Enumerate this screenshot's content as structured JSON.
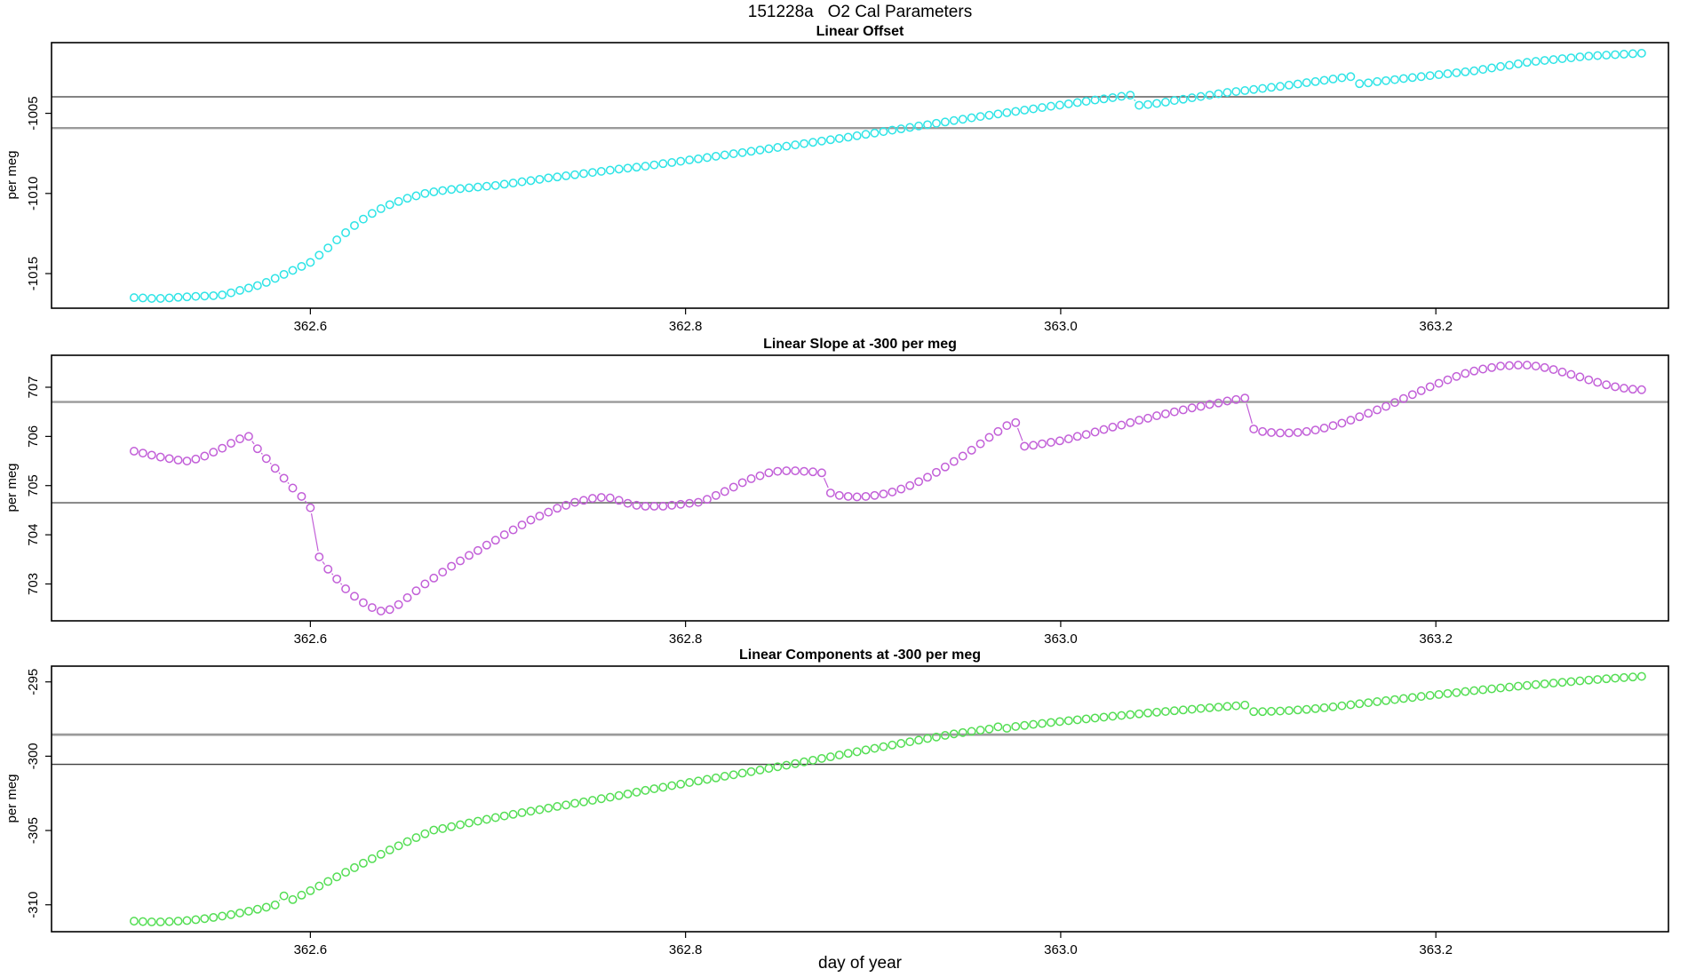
{
  "figure": {
    "title": "151228a   O2 Cal Parameters",
    "xlabel": "day of year"
  },
  "chart_data": [
    {
      "type": "scatter",
      "title": "Linear Offset",
      "ylabel": "per meg",
      "series_color": "#2EE4E6",
      "marker": "open-circle",
      "x_start": 362.506,
      "x_step": 0.0047,
      "x_ticks": [
        362.6,
        362.8,
        363.0,
        363.2
      ],
      "xlim": [
        362.462,
        363.324
      ],
      "y_ticks": [
        -1015,
        -1010,
        -1005
      ],
      "ylim": [
        -1017.16,
        -1000.59
      ],
      "ref_lines": [
        {
          "value": -1003.97,
          "color": "#5a5a5a",
          "width": 1.4
        },
        {
          "value": -1005.92,
          "color": "#9a9a9a",
          "width": 2.4
        }
      ],
      "values": [
        -1016.5,
        -1016.52,
        -1016.55,
        -1016.55,
        -1016.52,
        -1016.48,
        -1016.45,
        -1016.42,
        -1016.4,
        -1016.38,
        -1016.33,
        -1016.2,
        -1016.05,
        -1015.9,
        -1015.75,
        -1015.55,
        -1015.3,
        -1015.05,
        -1014.8,
        -1014.55,
        -1014.3,
        -1013.85,
        -1013.4,
        -1012.9,
        -1012.45,
        -1012.0,
        -1011.6,
        -1011.25,
        -1010.95,
        -1010.7,
        -1010.5,
        -1010.3,
        -1010.15,
        -1010.0,
        -1009.9,
        -1009.82,
        -1009.75,
        -1009.7,
        -1009.65,
        -1009.6,
        -1009.55,
        -1009.5,
        -1009.42,
        -1009.35,
        -1009.27,
        -1009.2,
        -1009.12,
        -1009.03,
        -1008.97,
        -1008.9,
        -1008.83,
        -1008.76,
        -1008.69,
        -1008.62,
        -1008.55,
        -1008.48,
        -1008.42,
        -1008.36,
        -1008.3,
        -1008.22,
        -1008.14,
        -1008.07,
        -1007.99,
        -1007.91,
        -1007.84,
        -1007.76,
        -1007.68,
        -1007.6,
        -1007.52,
        -1007.45,
        -1007.37,
        -1007.29,
        -1007.21,
        -1007.13,
        -1007.05,
        -1006.97,
        -1006.89,
        -1006.81,
        -1006.73,
        -1006.65,
        -1006.57,
        -1006.49,
        -1006.4,
        -1006.31,
        -1006.23,
        -1006.14,
        -1006.05,
        -1005.97,
        -1005.88,
        -1005.79,
        -1005.71,
        -1005.62,
        -1005.54,
        -1005.45,
        -1005.37,
        -1005.28,
        -1005.2,
        -1005.12,
        -1005.04,
        -1004.96,
        -1004.88,
        -1004.8,
        -1004.72,
        -1004.64,
        -1004.56,
        -1004.49,
        -1004.41,
        -1004.33,
        -1004.25,
        -1004.17,
        -1004.1,
        -1004.02,
        -1003.94,
        -1003.87,
        -1004.5,
        -1004.45,
        -1004.38,
        -1004.3,
        -1004.2,
        -1004.12,
        -1004.03,
        -1003.95,
        -1003.87,
        -1003.78,
        -1003.7,
        -1003.64,
        -1003.58,
        -1003.51,
        -1003.45,
        -1003.38,
        -1003.32,
        -1003.24,
        -1003.17,
        -1003.09,
        -1003.02,
        -1002.94,
        -1002.86,
        -1002.78,
        -1002.71,
        -1003.15,
        -1003.1,
        -1003.02,
        -1002.96,
        -1002.9,
        -1002.83,
        -1002.77,
        -1002.71,
        -1002.65,
        -1002.59,
        -1002.53,
        -1002.47,
        -1002.41,
        -1002.35,
        -1002.26,
        -1002.17,
        -1002.08,
        -1002.0,
        -1001.91,
        -1001.82,
        -1001.76,
        -1001.7,
        -1001.65,
        -1001.59,
        -1001.54,
        -1001.48,
        -1001.43,
        -1001.4,
        -1001.37,
        -1001.34,
        -1001.31,
        -1001.28,
        -1001.25
      ]
    },
    {
      "type": "scatter",
      "title": "Linear Slope at -300 per meg",
      "ylabel": "per meg",
      "series_color": "#C25FD8",
      "marker": "open-circle",
      "x_start": 362.506,
      "x_step": 0.0047,
      "x_ticks": [
        362.6,
        362.8,
        363.0,
        363.2
      ],
      "xlim": [
        362.462,
        363.324
      ],
      "y_ticks": [
        703,
        704,
        705,
        706,
        707
      ],
      "ylim": [
        702.25,
        707.65
      ],
      "ref_lines": [
        {
          "value": 706.7,
          "color": "#9a9a9a",
          "width": 2.4
        },
        {
          "value": 704.65,
          "color": "#6f6f6f",
          "width": 1.6
        }
      ],
      "values": [
        705.7,
        705.66,
        705.62,
        705.58,
        705.55,
        705.52,
        705.5,
        705.54,
        705.6,
        705.68,
        705.76,
        705.86,
        705.95,
        706.0,
        705.75,
        705.55,
        705.35,
        705.15,
        704.95,
        704.78,
        704.55,
        703.55,
        703.3,
        703.1,
        702.9,
        702.75,
        702.62,
        702.52,
        702.45,
        702.48,
        702.58,
        702.72,
        702.86,
        703.0,
        703.12,
        703.24,
        703.36,
        703.47,
        703.58,
        703.68,
        703.79,
        703.89,
        704.0,
        704.1,
        704.2,
        704.3,
        704.38,
        704.46,
        704.54,
        704.6,
        704.66,
        704.7,
        704.74,
        704.76,
        704.75,
        704.7,
        704.64,
        704.6,
        704.58,
        704.58,
        704.58,
        704.6,
        704.62,
        704.64,
        704.66,
        704.72,
        704.8,
        704.88,
        704.97,
        705.06,
        705.14,
        705.2,
        705.26,
        705.29,
        705.3,
        705.3,
        705.29,
        705.28,
        705.26,
        704.85,
        704.8,
        704.78,
        704.77,
        704.78,
        704.8,
        704.83,
        704.87,
        704.93,
        705.0,
        705.08,
        705.17,
        705.27,
        705.38,
        705.49,
        705.6,
        705.72,
        705.85,
        705.98,
        706.1,
        706.22,
        706.28,
        705.8,
        705.82,
        705.85,
        705.88,
        705.91,
        705.95,
        706.0,
        706.04,
        706.09,
        706.14,
        706.19,
        706.23,
        706.28,
        706.33,
        706.37,
        706.42,
        706.46,
        706.5,
        706.54,
        706.58,
        706.61,
        706.65,
        706.68,
        706.72,
        706.75,
        706.78,
        706.15,
        706.1,
        706.08,
        706.07,
        706.07,
        706.08,
        706.1,
        706.13,
        706.17,
        706.22,
        706.27,
        706.33,
        706.4,
        706.47,
        706.54,
        706.61,
        706.69,
        706.77,
        706.85,
        706.93,
        707.01,
        707.08,
        707.15,
        707.22,
        707.28,
        707.33,
        707.37,
        707.4,
        707.43,
        707.44,
        707.45,
        707.45,
        707.43,
        707.4,
        707.36,
        707.31,
        707.26,
        707.21,
        707.15,
        707.1,
        707.05,
        707.01,
        706.98,
        706.96,
        706.95
      ]
    },
    {
      "type": "scatter",
      "title": "Linear Components at -300 per meg",
      "ylabel": "per meg",
      "series_color": "#54DE54",
      "marker": "open-circle",
      "x_start": 362.506,
      "x_step": 0.0047,
      "x_ticks": [
        362.6,
        362.8,
        363.0,
        363.2
      ],
      "xlim": [
        362.462,
        363.324
      ],
      "y_ticks": [
        -310,
        -305,
        -300,
        -295
      ],
      "ylim": [
        -311.81,
        -293.94
      ],
      "ref_lines": [
        {
          "value": -298.55,
          "color": "#9a9a9a",
          "width": 2.8
        },
        {
          "value": -300.55,
          "color": "#3f3f3f",
          "width": 1.4
        }
      ],
      "values": [
        -311.1,
        -311.13,
        -311.15,
        -311.15,
        -311.13,
        -311.1,
        -311.06,
        -311.0,
        -310.93,
        -310.85,
        -310.76,
        -310.66,
        -310.55,
        -310.43,
        -310.3,
        -310.16,
        -310.01,
        -309.4,
        -309.65,
        -309.35,
        -309.05,
        -308.74,
        -308.43,
        -308.12,
        -307.81,
        -307.5,
        -307.2,
        -306.9,
        -306.6,
        -306.31,
        -306.03,
        -305.75,
        -305.48,
        -305.22,
        -304.97,
        -304.87,
        -304.74,
        -304.61,
        -304.49,
        -304.37,
        -304.25,
        -304.13,
        -304.02,
        -303.91,
        -303.8,
        -303.7,
        -303.6,
        -303.49,
        -303.38,
        -303.28,
        -303.17,
        -303.07,
        -302.97,
        -302.86,
        -302.76,
        -302.65,
        -302.54,
        -302.42,
        -302.3,
        -302.19,
        -302.09,
        -301.98,
        -301.88,
        -301.77,
        -301.67,
        -301.56,
        -301.46,
        -301.35,
        -301.25,
        -301.14,
        -301.04,
        -300.93,
        -300.82,
        -300.71,
        -300.61,
        -300.5,
        -300.38,
        -300.27,
        -300.15,
        -300.04,
        -299.92,
        -299.81,
        -299.7,
        -299.58,
        -299.47,
        -299.36,
        -299.25,
        -299.14,
        -299.03,
        -298.92,
        -298.81,
        -298.71,
        -298.6,
        -298.5,
        -298.41,
        -298.33,
        -298.25,
        -298.17,
        -298.02,
        -298.12,
        -298.0,
        -297.93,
        -297.86,
        -297.8,
        -297.73,
        -297.67,
        -297.61,
        -297.55,
        -297.49,
        -297.43,
        -297.37,
        -297.31,
        -297.26,
        -297.2,
        -297.15,
        -297.09,
        -297.04,
        -296.99,
        -296.94,
        -296.89,
        -296.84,
        -296.79,
        -296.74,
        -296.7,
        -296.65,
        -296.61,
        -296.56,
        -297.0,
        -297.0,
        -296.98,
        -296.96,
        -296.93,
        -296.89,
        -296.85,
        -296.8,
        -296.74,
        -296.68,
        -296.61,
        -296.54,
        -296.47,
        -296.4,
        -296.33,
        -296.26,
        -296.19,
        -296.12,
        -296.05,
        -295.98,
        -295.91,
        -295.85,
        -295.78,
        -295.72,
        -295.65,
        -295.59,
        -295.53,
        -295.47,
        -295.41,
        -295.35,
        -295.29,
        -295.24,
        -295.18,
        -295.13,
        -295.08,
        -295.03,
        -294.98,
        -294.93,
        -294.88,
        -294.84,
        -294.79,
        -294.75,
        -294.71,
        -294.67,
        -294.63
      ]
    }
  ]
}
